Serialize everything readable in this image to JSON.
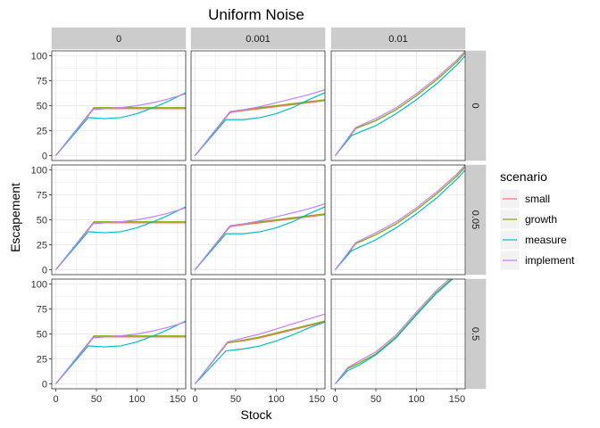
{
  "chart_data": {
    "type": "line",
    "title": "Uniform Noise",
    "xlabel": "Stock",
    "ylabel": "Escapement",
    "xlim": [
      -5,
      160
    ],
    "ylim": [
      -5,
      105
    ],
    "xticks": [
      0,
      50,
      100,
      150
    ],
    "yticks": [
      0,
      25,
      50,
      75,
      100
    ],
    "tick_labels_x": [
      "0",
      "50",
      "100",
      "150"
    ],
    "tick_labels_y": [
      "0",
      "25",
      "50",
      "75",
      "100"
    ],
    "grid": true,
    "legend": {
      "title": "scenario",
      "placement": "right",
      "entries": [
        "small",
        "growth",
        "measure",
        "implement"
      ]
    },
    "colors": {
      "small": "#F8766D",
      "growth": "#7CAE00",
      "measure": "#00BFC4",
      "implement": "#C77CFF"
    },
    "facet_cols": [
      "0",
      "0.001",
      "0.01"
    ],
    "facet_rows": [
      "0",
      "0.05",
      "0.5"
    ],
    "panels": [
      {
        "col": "0",
        "row": "0",
        "series": [
          {
            "name": "small",
            "x": [
              0,
              47,
              60,
              80,
              100,
              120,
              140,
              160
            ],
            "y": [
              0,
              47,
              47,
              47,
              47,
              47,
              47,
              47
            ]
          },
          {
            "name": "growth",
            "x": [
              0,
              47,
              60,
              80,
              100,
              120,
              140,
              160
            ],
            "y": [
              0,
              48,
              48,
              48,
              48,
              48,
              48,
              48
            ]
          },
          {
            "name": "measure",
            "x": [
              0,
              40,
              60,
              80,
              100,
              120,
              140,
              160
            ],
            "y": [
              0,
              38,
              37,
              38,
              42,
              48,
              55,
              63
            ]
          },
          {
            "name": "implement",
            "x": [
              0,
              45,
              60,
              80,
              100,
              120,
              140,
              160
            ],
            "y": [
              0,
              46,
              47,
              48,
              50,
              53,
              57,
              62
            ]
          }
        ]
      },
      {
        "col": "0.001",
        "row": "0",
        "series": [
          {
            "name": "small",
            "x": [
              0,
              43,
              60,
              80,
              100,
              120,
              140,
              160
            ],
            "y": [
              0,
              43,
              45,
              47,
              49,
              51,
              53,
              55
            ]
          },
          {
            "name": "growth",
            "x": [
              0,
              43,
              60,
              80,
              100,
              120,
              140,
              160
            ],
            "y": [
              0,
              44,
              46,
              48,
              50,
              52,
              54,
              56
            ]
          },
          {
            "name": "measure",
            "x": [
              0,
              38,
              60,
              80,
              100,
              120,
              140,
              160
            ],
            "y": [
              0,
              36,
              36,
              38,
              42,
              48,
              56,
              63
            ]
          },
          {
            "name": "implement",
            "x": [
              0,
              43,
              60,
              80,
              100,
              120,
              140,
              160
            ],
            "y": [
              0,
              44,
              46,
              49,
              53,
              57,
              61,
              66
            ]
          }
        ]
      },
      {
        "col": "0.01",
        "row": "0",
        "series": [
          {
            "name": "small",
            "x": [
              0,
              25,
              50,
              75,
              100,
              125,
              150,
              160
            ],
            "y": [
              0,
              27,
              35,
              46,
              60,
              76,
              94,
              103
            ]
          },
          {
            "name": "growth",
            "x": [
              0,
              25,
              50,
              75,
              100,
              125,
              150,
              160
            ],
            "y": [
              0,
              27,
              35,
              46,
              60,
              76,
              94,
              103
            ]
          },
          {
            "name": "measure",
            "x": [
              0,
              20,
              50,
              75,
              100,
              125,
              150,
              160
            ],
            "y": [
              0,
              20,
              30,
              42,
              56,
              72,
              91,
              100
            ]
          },
          {
            "name": "implement",
            "x": [
              0,
              25,
              50,
              75,
              100,
              125,
              150,
              160
            ],
            "y": [
              0,
              28,
              37,
              48,
              62,
              78,
              96,
              105
            ]
          }
        ]
      },
      {
        "col": "0",
        "row": "0.05",
        "series": [
          {
            "name": "small",
            "x": [
              0,
              47,
              60,
              80,
              100,
              120,
              140,
              160
            ],
            "y": [
              0,
              47,
              47,
              47,
              47,
              47,
              47,
              47
            ]
          },
          {
            "name": "growth",
            "x": [
              0,
              47,
              60,
              80,
              100,
              120,
              140,
              160
            ],
            "y": [
              0,
              48,
              48,
              48,
              48,
              48,
              48,
              48
            ]
          },
          {
            "name": "measure",
            "x": [
              0,
              40,
              60,
              80,
              100,
              120,
              140,
              160
            ],
            "y": [
              0,
              38,
              37,
              38,
              42,
              48,
              55,
              63
            ]
          },
          {
            "name": "implement",
            "x": [
              0,
              45,
              60,
              80,
              100,
              120,
              140,
              160
            ],
            "y": [
              0,
              46,
              47,
              48,
              50,
              53,
              57,
              62
            ]
          }
        ]
      },
      {
        "col": "0.001",
        "row": "0.05",
        "series": [
          {
            "name": "small",
            "x": [
              0,
              43,
              60,
              80,
              100,
              120,
              140,
              160
            ],
            "y": [
              0,
              43,
              45,
              47,
              49,
              51,
              53,
              55
            ]
          },
          {
            "name": "growth",
            "x": [
              0,
              43,
              60,
              80,
              100,
              120,
              140,
              160
            ],
            "y": [
              0,
              44,
              46,
              48,
              50,
              52,
              54,
              56
            ]
          },
          {
            "name": "measure",
            "x": [
              0,
              38,
              60,
              80,
              100,
              120,
              140,
              160
            ],
            "y": [
              0,
              36,
              36,
              38,
              42,
              48,
              56,
              63
            ]
          },
          {
            "name": "implement",
            "x": [
              0,
              43,
              60,
              80,
              100,
              120,
              140,
              160
            ],
            "y": [
              0,
              44,
              46,
              49,
              53,
              57,
              61,
              66
            ]
          }
        ]
      },
      {
        "col": "0.01",
        "row": "0.05",
        "series": [
          {
            "name": "small",
            "x": [
              0,
              25,
              50,
              75,
              100,
              125,
              150,
              160
            ],
            "y": [
              0,
              26,
              35,
              46,
              60,
              76,
              94,
              103
            ]
          },
          {
            "name": "growth",
            "x": [
              0,
              25,
              50,
              75,
              100,
              125,
              150,
              160
            ],
            "y": [
              0,
              26,
              35,
              46,
              60,
              76,
              94,
              103
            ]
          },
          {
            "name": "measure",
            "x": [
              0,
              20,
              50,
              75,
              100,
              125,
              150,
              160
            ],
            "y": [
              0,
              19,
              30,
              42,
              56,
              72,
              91,
              100
            ]
          },
          {
            "name": "implement",
            "x": [
              0,
              25,
              50,
              75,
              100,
              125,
              150,
              160
            ],
            "y": [
              0,
              27,
              37,
              48,
              62,
              78,
              96,
              105
            ]
          }
        ]
      },
      {
        "col": "0",
        "row": "0.5",
        "series": [
          {
            "name": "small",
            "x": [
              0,
              47,
              60,
              80,
              100,
              120,
              140,
              160
            ],
            "y": [
              0,
              47,
              47,
              47,
              47,
              47,
              47,
              47
            ]
          },
          {
            "name": "growth",
            "x": [
              0,
              47,
              60,
              80,
              100,
              120,
              140,
              160
            ],
            "y": [
              0,
              48,
              48,
              48,
              48,
              48,
              48,
              48
            ]
          },
          {
            "name": "measure",
            "x": [
              0,
              40,
              60,
              80,
              100,
              120,
              140,
              160
            ],
            "y": [
              0,
              38,
              37,
              38,
              42,
              48,
              55,
              63
            ]
          },
          {
            "name": "implement",
            "x": [
              0,
              45,
              60,
              80,
              100,
              120,
              140,
              160
            ],
            "y": [
              0,
              46,
              47,
              48,
              50,
              53,
              57,
              62
            ]
          }
        ]
      },
      {
        "col": "0.001",
        "row": "0.5",
        "series": [
          {
            "name": "small",
            "x": [
              0,
              40,
              60,
              80,
              100,
              120,
              140,
              160
            ],
            "y": [
              0,
              41,
              43,
              46,
              50,
              54,
              58,
              62
            ]
          },
          {
            "name": "growth",
            "x": [
              0,
              40,
              60,
              80,
              100,
              120,
              140,
              160
            ],
            "y": [
              0,
              41,
              44,
              47,
              51,
              55,
              59,
              63
            ]
          },
          {
            "name": "measure",
            "x": [
              0,
              38,
              60,
              80,
              100,
              120,
              140,
              160
            ],
            "y": [
              0,
              33,
              35,
              38,
              43,
              49,
              56,
              62
            ]
          },
          {
            "name": "implement",
            "x": [
              0,
              40,
              60,
              80,
              100,
              120,
              140,
              160
            ],
            "y": [
              0,
              42,
              46,
              50,
              55,
              60,
              65,
              70
            ]
          }
        ]
      },
      {
        "col": "0.01",
        "row": "0.5",
        "series": [
          {
            "name": "small",
            "x": [
              0,
              15,
              30,
              50,
              75,
              100,
              125,
              150,
              160
            ],
            "y": [
              0,
              15,
              21,
              30,
              47,
              70,
              92,
              110,
              118
            ]
          },
          {
            "name": "growth",
            "x": [
              0,
              15,
              30,
              50,
              75,
              100,
              125,
              150,
              160
            ],
            "y": [
              0,
              15,
              21,
              30,
              47,
              70,
              92,
              110,
              118
            ]
          },
          {
            "name": "measure",
            "x": [
              0,
              15,
              30,
              50,
              75,
              100,
              125,
              150,
              160
            ],
            "y": [
              0,
              13,
              19,
              29,
              46,
              69,
              91,
              109,
              117
            ]
          },
          {
            "name": "implement",
            "x": [
              0,
              15,
              30,
              50,
              75,
              100,
              125,
              150,
              160
            ],
            "y": [
              0,
              16,
              23,
              32,
              49,
              72,
              94,
              112,
              120
            ]
          }
        ]
      }
    ]
  }
}
